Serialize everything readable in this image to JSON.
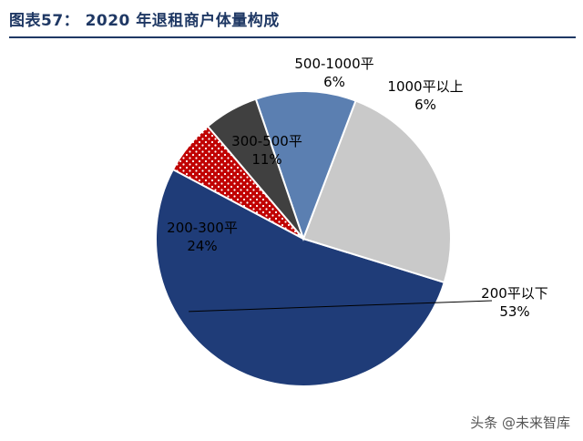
{
  "header": {
    "title": "图表57：  2020 年退租商户体量构成"
  },
  "chart_data": {
    "type": "pie",
    "title": "2020 年退租商户体量构成",
    "slices": [
      {
        "name": "200平以下",
        "value": 53,
        "label": "53%",
        "color": "#1f3c78",
        "pattern": false
      },
      {
        "name": "200-300平",
        "value": 24,
        "label": "24%",
        "color": "#c9c9c9",
        "pattern": false
      },
      {
        "name": "300-500平",
        "value": 11,
        "label": "11%",
        "color": "#5b7fb1",
        "pattern": false
      },
      {
        "name": "500-1000平",
        "value": 6,
        "label": "6%",
        "color": "#404040",
        "pattern": false
      },
      {
        "name": "1000平以上",
        "value": 6,
        "label": "6%",
        "color": "#c00000",
        "pattern": true
      }
    ],
    "start_angle_deg": 152,
    "direction": "counterclockwise",
    "legend": "none",
    "data_labels": "outside-with-leader"
  },
  "watermark": {
    "text": "头条 @未来智库"
  }
}
